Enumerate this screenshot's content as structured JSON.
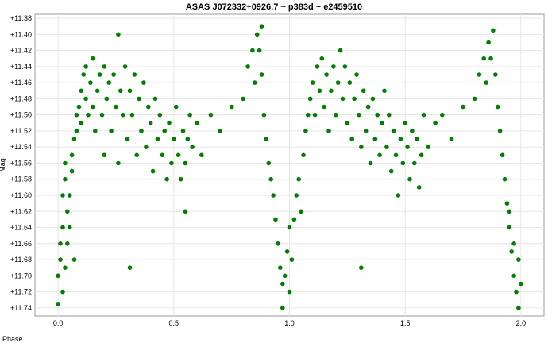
{
  "chart_data": {
    "type": "scatter",
    "title": "ASAS J072332+0926.7 ~  p383d ~ e2459510",
    "xlabel": "Phase",
    "ylabel": "Mag",
    "xlim": [
      -0.1,
      2.1
    ],
    "ylim": [
      11.375,
      11.75
    ],
    "y_inverted": true,
    "grid": true,
    "x_ticks": [
      "0.0",
      "0.5",
      "1.0",
      "1.5",
      "2.0"
    ],
    "y_ticks": [
      "+11.38",
      "+11.40",
      "+11.42",
      "+11.44",
      "+11.46",
      "+11.48",
      "+11.50",
      "+11.52",
      "+11.54",
      "+11.56",
      "+11.58",
      "+11.60",
      "+11.62",
      "+11.64",
      "+11.66",
      "+11.68",
      "+11.70",
      "+11.72",
      "+11.74"
    ],
    "marker_color": "#008000",
    "series": [
      {
        "points": [
          [
            0.0,
            11.735
          ],
          [
            0.0,
            11.7
          ],
          [
            0.01,
            11.68
          ],
          [
            0.01,
            11.66
          ],
          [
            0.02,
            11.64
          ],
          [
            0.02,
            11.6
          ],
          [
            0.03,
            11.58
          ],
          [
            0.03,
            11.56
          ],
          [
            0.04,
            11.62
          ],
          [
            0.04,
            11.66
          ],
          [
            0.05,
            11.64
          ],
          [
            0.05,
            11.6
          ],
          [
            0.06,
            11.57
          ],
          [
            0.06,
            11.55
          ],
          [
            0.07,
            11.53
          ],
          [
            0.07,
            11.68
          ],
          [
            0.08,
            11.52
          ],
          [
            0.08,
            11.5
          ],
          [
            0.09,
            11.49
          ],
          [
            0.1,
            11.47
          ],
          [
            0.1,
            11.51
          ],
          [
            0.11,
            11.45
          ],
          [
            0.12,
            11.48
          ],
          [
            0.12,
            11.44
          ],
          [
            0.13,
            11.5
          ],
          [
            0.14,
            11.46
          ],
          [
            0.15,
            11.49
          ],
          [
            0.15,
            11.43
          ],
          [
            0.16,
            11.52
          ],
          [
            0.17,
            11.47
          ],
          [
            0.18,
            11.45
          ],
          [
            0.19,
            11.5
          ],
          [
            0.2,
            11.55
          ],
          [
            0.2,
            11.44
          ],
          [
            0.21,
            11.48
          ],
          [
            0.22,
            11.46
          ],
          [
            0.23,
            11.52
          ],
          [
            0.24,
            11.45
          ],
          [
            0.25,
            11.49
          ],
          [
            0.26,
            11.4
          ],
          [
            0.26,
            11.56
          ],
          [
            0.27,
            11.47
          ],
          [
            0.28,
            11.5
          ],
          [
            0.29,
            11.44
          ],
          [
            0.3,
            11.53
          ],
          [
            0.31,
            11.47
          ],
          [
            0.31,
            11.69
          ],
          [
            0.32,
            11.5
          ],
          [
            0.33,
            11.45
          ],
          [
            0.34,
            11.55
          ],
          [
            0.35,
            11.48
          ],
          [
            0.36,
            11.52
          ],
          [
            0.37,
            11.46
          ],
          [
            0.38,
            11.54
          ],
          [
            0.39,
            11.49
          ],
          [
            0.4,
            11.51
          ],
          [
            0.41,
            11.57
          ],
          [
            0.42,
            11.48
          ],
          [
            0.43,
            11.53
          ],
          [
            0.44,
            11.5
          ],
          [
            0.45,
            11.55
          ],
          [
            0.46,
            11.52
          ],
          [
            0.47,
            11.58
          ],
          [
            0.48,
            11.51
          ],
          [
            0.49,
            11.56
          ],
          [
            0.5,
            11.53
          ],
          [
            0.51,
            11.49
          ],
          [
            0.52,
            11.55
          ],
          [
            0.53,
            11.58
          ],
          [
            0.54,
            11.52
          ],
          [
            0.55,
            11.56
          ],
          [
            0.55,
            11.62
          ],
          [
            0.56,
            11.53
          ],
          [
            0.57,
            11.5
          ],
          [
            0.58,
            11.54
          ],
          [
            0.6,
            11.51
          ],
          [
            0.62,
            11.55
          ],
          [
            0.66,
            11.5
          ],
          [
            0.7,
            11.52
          ],
          [
            0.75,
            11.49
          ],
          [
            0.8,
            11.48
          ],
          [
            0.82,
            11.44
          ],
          [
            0.84,
            11.42
          ],
          [
            0.85,
            11.46
          ],
          [
            0.86,
            11.4
          ],
          [
            0.87,
            11.42
          ],
          [
            0.88,
            11.45
          ],
          [
            0.88,
            11.39
          ],
          [
            0.89,
            11.5
          ],
          [
            0.9,
            11.53
          ],
          [
            0.91,
            11.56
          ],
          [
            0.92,
            11.58
          ],
          [
            0.93,
            11.6
          ],
          [
            0.94,
            11.63
          ],
          [
            0.95,
            11.66
          ],
          [
            0.96,
            11.69
          ],
          [
            0.97,
            11.71
          ],
          [
            0.97,
            11.74
          ],
          [
            0.98,
            11.7
          ],
          [
            0.99,
            11.67
          ],
          [
            1.0,
            11.72
          ],
          [
            1.0,
            11.64
          ],
          [
            1.01,
            11.68
          ],
          [
            1.02,
            11.63
          ],
          [
            1.03,
            11.6
          ],
          [
            1.04,
            11.58
          ],
          [
            1.05,
            11.62
          ],
          [
            1.06,
            11.55
          ],
          [
            1.07,
            11.52
          ],
          [
            1.08,
            11.5
          ],
          [
            1.09,
            11.48
          ],
          [
            1.1,
            11.46
          ],
          [
            1.11,
            11.5
          ],
          [
            1.12,
            11.44
          ],
          [
            1.13,
            11.47
          ],
          [
            1.14,
            11.43
          ],
          [
            1.15,
            11.49
          ],
          [
            1.16,
            11.45
          ],
          [
            1.17,
            11.52
          ],
          [
            1.18,
            11.47
          ],
          [
            1.19,
            11.44
          ],
          [
            1.2,
            11.5
          ],
          [
            1.21,
            11.46
          ],
          [
            1.22,
            11.42
          ],
          [
            1.23,
            11.48
          ],
          [
            1.24,
            11.44
          ],
          [
            1.25,
            11.51
          ],
          [
            1.26,
            11.46
          ],
          [
            1.27,
            11.53
          ],
          [
            1.28,
            11.48
          ],
          [
            1.29,
            11.45
          ],
          [
            1.3,
            11.5
          ],
          [
            1.31,
            11.54
          ],
          [
            1.31,
            11.69
          ],
          [
            1.32,
            11.47
          ],
          [
            1.33,
            11.52
          ],
          [
            1.34,
            11.49
          ],
          [
            1.35,
            11.56
          ],
          [
            1.36,
            11.48
          ],
          [
            1.37,
            11.53
          ],
          [
            1.38,
            11.5
          ],
          [
            1.39,
            11.55
          ],
          [
            1.4,
            11.51
          ],
          [
            1.41,
            11.47
          ],
          [
            1.42,
            11.54
          ],
          [
            1.43,
            11.5
          ],
          [
            1.44,
            11.57
          ],
          [
            1.45,
            11.52
          ],
          [
            1.46,
            11.55
          ],
          [
            1.47,
            11.6
          ],
          [
            1.48,
            11.53
          ],
          [
            1.49,
            11.56
          ],
          [
            1.5,
            11.51
          ],
          [
            1.51,
            11.54
          ],
          [
            1.52,
            11.58
          ],
          [
            1.53,
            11.52
          ],
          [
            1.54,
            11.56
          ],
          [
            1.55,
            11.53
          ],
          [
            1.56,
            11.59
          ],
          [
            1.57,
            11.55
          ],
          [
            1.58,
            11.5
          ],
          [
            1.6,
            11.54
          ],
          [
            1.63,
            11.51
          ],
          [
            1.66,
            11.5
          ],
          [
            1.7,
            11.53
          ],
          [
            1.75,
            11.49
          ],
          [
            1.8,
            11.48
          ],
          [
            1.82,
            11.45
          ],
          [
            1.84,
            11.43
          ],
          [
            1.85,
            11.46
          ],
          [
            1.86,
            11.41
          ],
          [
            1.87,
            11.43
          ],
          [
            1.88,
            11.395
          ],
          [
            1.89,
            11.45
          ],
          [
            1.9,
            11.49
          ],
          [
            1.91,
            11.52
          ],
          [
            1.92,
            11.55
          ],
          [
            1.93,
            11.58
          ],
          [
            1.94,
            11.61
          ],
          [
            1.95,
            11.64
          ],
          [
            1.96,
            11.67
          ],
          [
            1.97,
            11.7
          ],
          [
            1.98,
            11.72
          ],
          [
            1.99,
            11.74
          ],
          [
            2.0,
            11.71
          ],
          [
            1.99,
            11.68
          ],
          [
            1.97,
            11.66
          ],
          [
            1.95,
            11.62
          ],
          [
            0.02,
            11.72
          ],
          [
            0.03,
            11.69
          ]
        ]
      }
    ]
  }
}
